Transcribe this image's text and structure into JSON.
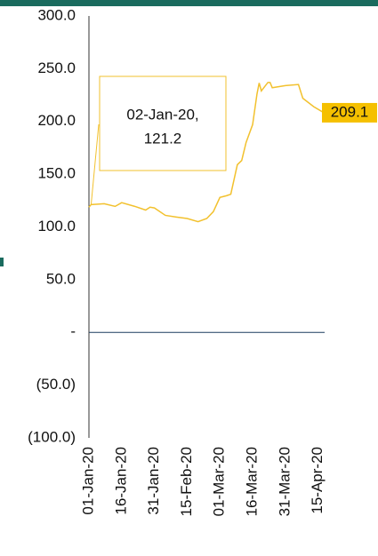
{
  "chart_data": {
    "type": "line",
    "x": [
      "01-Jan-20",
      "02-Jan-20",
      "08-Jan-20",
      "13-Jan-20",
      "16-Jan-20",
      "22-Jan-20",
      "27-Jan-20",
      "29-Jan-20",
      "31-Jan-20",
      "05-Feb-20",
      "10-Feb-20",
      "15-Feb-20",
      "20-Feb-20",
      "24-Feb-20",
      "27-Feb-20",
      "01-Mar-20",
      "04-Mar-20",
      "06-Mar-20",
      "09-Mar-20",
      "11-Mar-20",
      "13-Mar-20",
      "16-Mar-20",
      "18-Mar-20",
      "19-Mar-20",
      "20-Mar-20",
      "23-Mar-20",
      "24-Mar-20",
      "25-Mar-20",
      "31-Mar-20",
      "06-Apr-20",
      "08-Apr-20",
      "13-Apr-20",
      "17-Apr-20"
    ],
    "series": [
      {
        "color": "#f2c12e",
        "values": [
          118.7,
          121.2,
          122,
          119.5,
          123,
          119.5,
          116,
          118.7,
          118,
          111,
          109.4,
          108,
          105,
          108,
          114.5,
          128,
          129.6,
          131,
          159,
          163,
          180,
          197,
          226,
          236.5,
          229,
          237,
          237,
          232,
          234,
          235,
          222,
          214,
          209.1
        ]
      }
    ],
    "xlim": [
      "01-Jan-20",
      "18-Apr-20"
    ],
    "xticks": [
      "01-Jan-20",
      "16-Jan-20",
      "31-Jan-20",
      "15-Feb-20",
      "01-Mar-20",
      "16-Mar-20",
      "31-Mar-20",
      "15-Apr-20"
    ],
    "ylim": [
      -100,
      300
    ],
    "yticks": [
      {
        "value": 300,
        "label": "300.0"
      },
      {
        "value": 250,
        "label": "250.0"
      },
      {
        "value": 200,
        "label": "200.0"
      },
      {
        "value": 150,
        "label": "150.0"
      },
      {
        "value": 100,
        "label": "100.0"
      },
      {
        "value": 50,
        "label": "50.0"
      },
      {
        "value": 0,
        "label": "-"
      },
      {
        "value": -50,
        "label": "(50.0)"
      },
      {
        "value": -100,
        "label": "(100.0)"
      }
    ],
    "annotation": [
      "02-Jan-20,",
      "121.2"
    ],
    "end_label_color": "#f5c000"
  }
}
